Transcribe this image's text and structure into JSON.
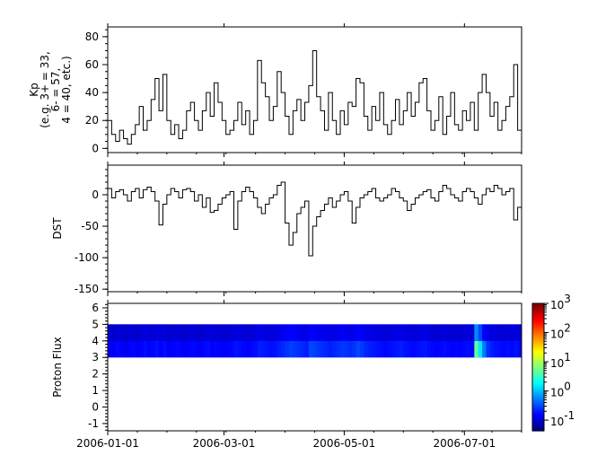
{
  "chart_data": [
    {
      "type": "line",
      "ylabel": [
        "Kp",
        "(e.g. 3+ = 33,",
        "6- = 57,",
        "4 = 40, etc.)"
      ],
      "ylim": [
        -3,
        87
      ],
      "yticks": [
        0,
        20,
        40,
        60,
        80
      ],
      "xlim": [
        "2006-01-01",
        "2006-07-30"
      ],
      "values": [
        20,
        10,
        5,
        13,
        7,
        3,
        10,
        17,
        30,
        13,
        20,
        35,
        50,
        27,
        53,
        20,
        10,
        17,
        7,
        13,
        27,
        33,
        20,
        13,
        27,
        40,
        23,
        47,
        33,
        20,
        10,
        13,
        20,
        33,
        17,
        27,
        10,
        20,
        63,
        47,
        37,
        20,
        30,
        55,
        40,
        23,
        10,
        27,
        35,
        20,
        33,
        45,
        70,
        37,
        27,
        13,
        40,
        20,
        10,
        27,
        17,
        33,
        30,
        50,
        47,
        23,
        13,
        30,
        20,
        40,
        17,
        10,
        20,
        35,
        17,
        27,
        40,
        23,
        33,
        47,
        50,
        27,
        13,
        20,
        37,
        10,
        23,
        40,
        17,
        13,
        27,
        20,
        33,
        13,
        40,
        53,
        40,
        23,
        33,
        13,
        20,
        30,
        37,
        60,
        13
      ]
    },
    {
      "type": "line",
      "ylabel": [
        "DST"
      ],
      "ylim": [
        -154,
        47
      ],
      "yticks": [
        0,
        -50,
        -100,
        -150
      ],
      "xlim": [
        "2006-01-01",
        "2006-07-30"
      ],
      "values": [
        10,
        -5,
        5,
        8,
        0,
        -10,
        5,
        10,
        -5,
        8,
        12,
        5,
        -10,
        -48,
        -15,
        0,
        10,
        5,
        -5,
        8,
        10,
        5,
        -10,
        0,
        -20,
        -5,
        -28,
        -25,
        -15,
        -5,
        0,
        5,
        -55,
        -10,
        5,
        12,
        5,
        -5,
        -20,
        -30,
        -15,
        -5,
        0,
        15,
        20,
        -45,
        -80,
        -60,
        -30,
        -20,
        -10,
        -97,
        -50,
        -35,
        -25,
        -15,
        -5,
        -20,
        -10,
        0,
        5,
        -10,
        -45,
        -20,
        -5,
        0,
        5,
        10,
        -5,
        -10,
        -5,
        0,
        10,
        5,
        -5,
        -10,
        -25,
        -15,
        -5,
        0,
        5,
        8,
        -5,
        -10,
        5,
        15,
        10,
        0,
        -5,
        -10,
        5,
        10,
        5,
        -5,
        -15,
        0,
        10,
        5,
        15,
        10,
        0,
        5,
        10,
        -40,
        -20
      ]
    },
    {
      "type": "heatmap",
      "ylabel": [
        "Proton Flux"
      ],
      "ylim": [
        -1.44,
        6.27
      ],
      "yticks": [
        -1,
        0,
        1,
        2,
        3,
        4,
        5,
        6
      ],
      "xlim": [
        "2006-01-01",
        "2006-07-30"
      ],
      "xticks": [
        "2006-01-01",
        "2006-03-01",
        "2006-05-01",
        "2006-07-01"
      ],
      "bins": [
        3,
        4,
        5
      ],
      "colorbar": {
        "scale": "log",
        "range": [
          0.043,
          1000
        ],
        "ticks": [
          "10^3",
          "10^2",
          "10^1",
          "10^0",
          "10^-1"
        ],
        "tick_values": [
          1000,
          100,
          10,
          1,
          0.1
        ],
        "colormap": "jet"
      },
      "rows": [
        [
          0.15,
          0.14,
          0.16,
          0.15,
          0.13,
          0.15,
          0.16,
          0.14,
          0.15,
          0.17,
          0.15,
          0.16,
          0.18,
          0.15,
          0.17,
          0.14,
          0.15,
          0.16,
          0.15,
          0.14,
          0.15,
          0.16,
          0.15,
          0.14,
          0.16,
          0.17,
          0.15,
          0.16,
          0.15,
          0.14,
          0.15,
          0.16,
          0.18,
          0.17,
          0.16,
          0.15,
          0.16,
          0.17,
          0.2,
          0.19,
          0.18,
          0.17,
          0.18,
          0.2,
          0.22,
          0.25,
          0.28,
          0.26,
          0.24,
          0.22,
          0.2,
          0.3,
          0.28,
          0.25,
          0.24,
          0.22,
          0.2,
          0.22,
          0.24,
          0.26,
          0.25,
          0.23,
          0.25,
          0.3,
          0.26,
          0.22,
          0.2,
          0.19,
          0.18,
          0.17,
          0.16,
          0.17,
          0.18,
          0.19,
          0.2,
          0.18,
          0.17,
          0.16,
          0.17,
          0.18,
          0.19,
          0.17,
          0.16,
          0.15,
          0.16,
          0.17,
          0.16,
          0.15,
          0.16,
          0.15,
          0.16,
          0.17,
          0.16,
          5.0,
          1.5,
          0.5,
          0.25,
          0.2,
          0.18,
          0.17,
          0.16,
          0.17,
          0.16,
          0.18,
          0.16
        ],
        [
          0.1,
          0.09,
          0.1,
          0.1,
          0.09,
          0.1,
          0.1,
          0.09,
          0.1,
          0.11,
          0.1,
          0.1,
          0.11,
          0.1,
          0.11,
          0.09,
          0.1,
          0.1,
          0.1,
          0.09,
          0.1,
          0.1,
          0.1,
          0.09,
          0.1,
          0.11,
          0.1,
          0.1,
          0.1,
          0.09,
          0.1,
          0.1,
          0.11,
          0.11,
          0.1,
          0.1,
          0.1,
          0.11,
          0.12,
          0.12,
          0.11,
          0.11,
          0.11,
          0.12,
          0.13,
          0.14,
          0.15,
          0.14,
          0.13,
          0.12,
          0.12,
          0.15,
          0.14,
          0.13,
          0.13,
          0.12,
          0.12,
          0.12,
          0.13,
          0.14,
          0.13,
          0.12,
          0.13,
          0.15,
          0.14,
          0.12,
          0.12,
          0.11,
          0.11,
          0.11,
          0.1,
          0.11,
          0.11,
          0.12,
          0.12,
          0.11,
          0.11,
          0.1,
          0.11,
          0.11,
          0.12,
          0.11,
          0.1,
          0.1,
          0.1,
          0.11,
          0.1,
          0.1,
          0.1,
          0.1,
          0.1,
          0.11,
          0.1,
          0.6,
          0.3,
          0.15,
          0.12,
          0.11,
          0.11,
          0.1,
          0.1,
          0.11,
          0.1,
          0.11,
          0.1
        ]
      ]
    }
  ],
  "x": [
    "2006-01-01",
    "2006-01-03",
    "2006-01-05",
    "2006-01-07",
    "2006-01-09",
    "2006-01-11",
    "2006-01-13",
    "2006-01-15",
    "2006-01-17",
    "2006-01-19",
    "2006-01-21",
    "2006-01-23",
    "2006-01-25",
    "2006-01-27",
    "2006-01-29",
    "2006-01-31",
    "2006-02-02",
    "2006-02-04",
    "2006-02-06",
    "2006-02-08",
    "2006-02-10",
    "2006-02-12",
    "2006-02-14",
    "2006-02-16",
    "2006-02-18",
    "2006-02-20",
    "2006-02-22",
    "2006-02-24",
    "2006-02-26",
    "2006-02-28",
    "2006-03-02",
    "2006-03-04",
    "2006-03-06",
    "2006-03-08",
    "2006-03-10",
    "2006-03-12",
    "2006-03-14",
    "2006-03-16",
    "2006-03-18",
    "2006-03-20",
    "2006-03-22",
    "2006-03-24",
    "2006-03-26",
    "2006-03-28",
    "2006-03-30",
    "2006-04-01",
    "2006-04-03",
    "2006-04-05",
    "2006-04-07",
    "2006-04-09",
    "2006-04-11",
    "2006-04-13",
    "2006-04-15",
    "2006-04-17",
    "2006-04-19",
    "2006-04-21",
    "2006-04-23",
    "2006-04-25",
    "2006-04-27",
    "2006-04-29",
    "2006-05-01",
    "2006-05-03",
    "2006-05-05",
    "2006-05-07",
    "2006-05-09",
    "2006-05-11",
    "2006-05-13",
    "2006-05-15",
    "2006-05-17",
    "2006-05-19",
    "2006-05-21",
    "2006-05-23",
    "2006-05-25",
    "2006-05-27",
    "2006-05-29",
    "2006-05-31",
    "2006-06-02",
    "2006-06-04",
    "2006-06-06",
    "2006-06-08",
    "2006-06-10",
    "2006-06-12",
    "2006-06-14",
    "2006-06-16",
    "2006-06-18",
    "2006-06-20",
    "2006-06-22",
    "2006-06-24",
    "2006-06-26",
    "2006-06-28",
    "2006-06-30",
    "2006-07-02",
    "2006-07-04",
    "2006-07-06",
    "2006-07-08",
    "2006-07-10",
    "2006-07-12",
    "2006-07-14",
    "2006-07-16",
    "2006-07-18",
    "2006-07-20",
    "2006-07-22",
    "2006-07-24",
    "2006-07-26",
    "2006-07-28"
  ]
}
